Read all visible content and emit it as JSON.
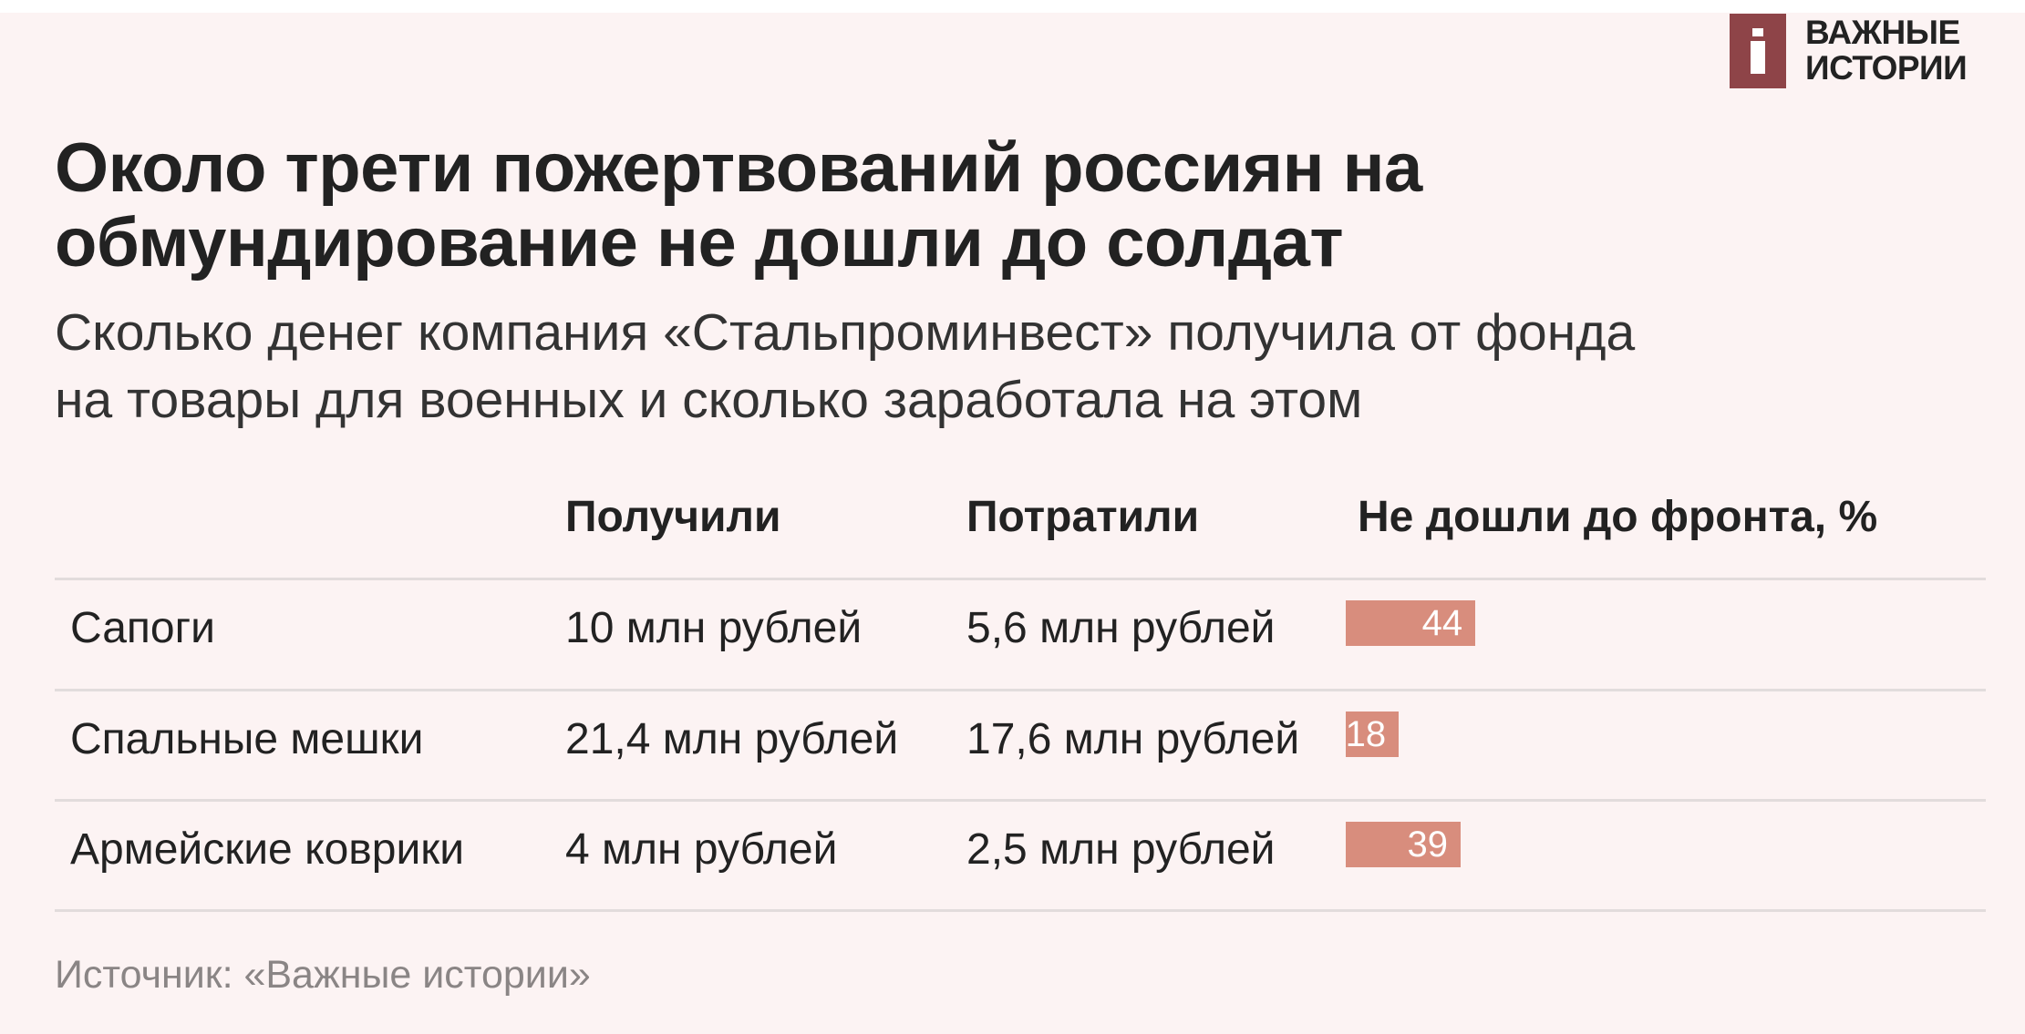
{
  "logo": {
    "text_line1": "ВАЖНЫЕ",
    "text_line2": "ИСТОРИИ",
    "color": "#8e4448"
  },
  "title": {
    "line1": "Около трети пожертвований россиян на",
    "line2": "обмундирование не дошли до солдат"
  },
  "subtitle": {
    "line1": "Сколько денег компания «Стальпроминвест» получила от фонда",
    "line2": "на товары для военных и сколько заработала на этом"
  },
  "source": "Источник: «Важные истории»",
  "chart_data": {
    "type": "table",
    "columns": [
      "",
      "Получили",
      "Потратили",
      "Не дошли до фронта, %"
    ],
    "rows": [
      {
        "item": "Сапоги",
        "received": "10 млн рублей",
        "spent": "5,6 млн рублей",
        "percent": 44
      },
      {
        "item": "Спальные мешки",
        "received": "21,4 млн рублей",
        "spent": "17,6 млн рублей",
        "percent": 18
      },
      {
        "item": "Армейские коврики",
        "received": "4 млн рублей",
        "spent": "2,5 млн рублей",
        "percent": 39
      }
    ],
    "bar_color": "#d88d7d"
  }
}
